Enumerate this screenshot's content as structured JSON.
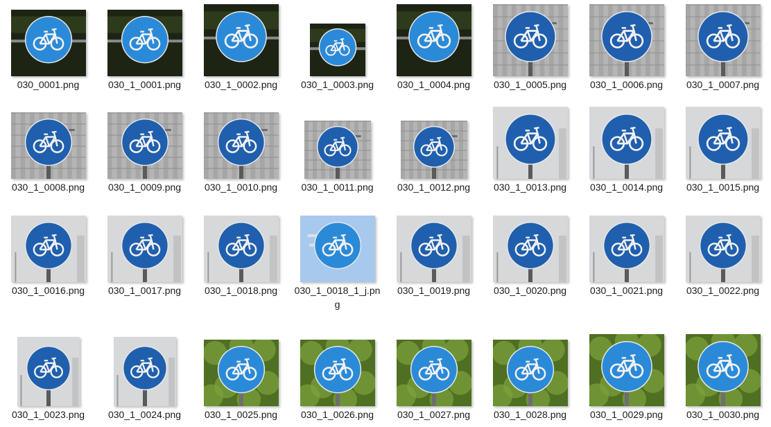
{
  "files": [
    {
      "name": "030_0001.png",
      "bg": "dark",
      "size": "land"
    },
    {
      "name": "030_1_0001.png",
      "bg": "dark",
      "size": "land"
    },
    {
      "name": "030_1_0002.png",
      "bg": "dark",
      "size": "tall"
    },
    {
      "name": "030_1_0003.png",
      "bg": "dark",
      "size": "small"
    },
    {
      "name": "030_1_0004.png",
      "bg": "dark",
      "size": "tall"
    },
    {
      "name": "030_1_0005.png",
      "bg": "building",
      "size": "tall"
    },
    {
      "name": "030_1_0006.png",
      "bg": "building",
      "size": "tall"
    },
    {
      "name": "030_1_0007.png",
      "bg": "building",
      "size": "tall"
    },
    {
      "name": "030_1_0008.png",
      "bg": "building",
      "size": "land"
    },
    {
      "name": "030_1_0009.png",
      "bg": "building",
      "size": "land"
    },
    {
      "name": "030_1_0010.png",
      "bg": "building",
      "size": "land"
    },
    {
      "name": "030_1_0011.png",
      "bg": "building",
      "size": "mid"
    },
    {
      "name": "030_1_0012.png",
      "bg": "building",
      "size": "mid"
    },
    {
      "name": "030_1_0013.png",
      "bg": "haze",
      "size": "tall"
    },
    {
      "name": "030_1_0014.png",
      "bg": "haze",
      "size": "tall"
    },
    {
      "name": "030_1_0015.png",
      "bg": "haze",
      "size": "tall"
    },
    {
      "name": "030_1_0016.png",
      "bg": "haze",
      "size": "land"
    },
    {
      "name": "030_1_0017.png",
      "bg": "haze",
      "size": "land"
    },
    {
      "name": "030_1_0018.png",
      "bg": "haze",
      "size": "land"
    },
    {
      "name": "030_1_0018_1_j.png",
      "bg": "sky",
      "size": "land"
    },
    {
      "name": "030_1_0019.png",
      "bg": "haze",
      "size": "land"
    },
    {
      "name": "030_1_0020.png",
      "bg": "haze",
      "size": "land"
    },
    {
      "name": "030_1_0021.png",
      "bg": "haze",
      "size": "land"
    },
    {
      "name": "030_1_0022.png",
      "bg": "haze",
      "size": "land"
    },
    {
      "name": "030_1_0023.png",
      "bg": "haze",
      "size": "narrow"
    },
    {
      "name": "030_1_0024.png",
      "bg": "haze",
      "size": "narrow"
    },
    {
      "name": "030_1_0025.png",
      "bg": "trees",
      "size": "land"
    },
    {
      "name": "030_1_0026.png",
      "bg": "trees",
      "size": "land"
    },
    {
      "name": "030_1_0027.png",
      "bg": "trees",
      "size": "land"
    },
    {
      "name": "030_1_0028.png",
      "bg": "trees",
      "size": "land"
    },
    {
      "name": "030_1_0029.png",
      "bg": "trees",
      "size": "tall"
    },
    {
      "name": "030_1_0030.png",
      "bg": "trees",
      "size": "tall"
    }
  ],
  "colors": {
    "sign_blue_bright": "#2b8ad8",
    "sign_blue_dark": "#1f5fae",
    "bike_white": "#f2f2f2"
  }
}
